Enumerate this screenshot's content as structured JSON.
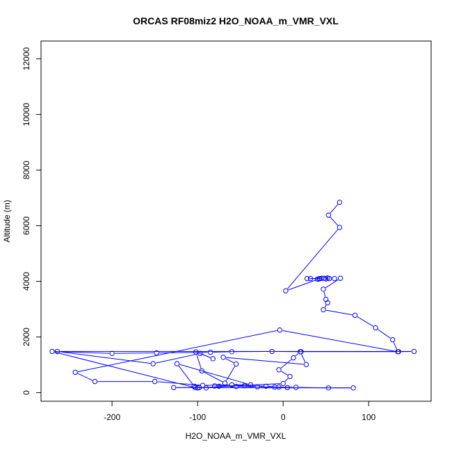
{
  "chart_data": {
    "type": "line",
    "title": "ORCAS RF08miz2 H2O_NOAA_m_VMR_VXL",
    "xlabel": "H2O_NOAA_m_VMR_VXL",
    "ylabel": "Altitude (m)",
    "xlim": [
      -283,
      173
    ],
    "ylim": [
      -310,
      12640
    ],
    "xticks": [
      -200,
      -100,
      0,
      100
    ],
    "yticks": [
      0,
      2000,
      4000,
      6000,
      8000,
      10000,
      12000
    ],
    "grid": false,
    "legend": "none",
    "series_color": "#0000ff",
    "series": [
      {
        "x": [
          66,
          53,
          66,
          3,
          42,
          40,
          45,
          43,
          28,
          32,
          48,
          50,
          52,
          54,
          60,
          67,
          47,
          50,
          52,
          47,
          84,
          108,
          128,
          134,
          -4,
          -243,
          -220,
          -150,
          -94,
          -60,
          -38,
          -124,
          -104,
          -100,
          0,
          8,
          -5,
          12,
          20,
          27,
          -70,
          -55,
          -68,
          -95,
          -102,
          -82,
          -97,
          -152,
          -264,
          153,
          135,
          21,
          -13,
          -60,
          -85,
          -148,
          -200,
          -270,
          -103,
          -90,
          -98,
          -128,
          82,
          53,
          15,
          -10,
          -30,
          -55,
          -75,
          -80,
          -45,
          -20,
          -5,
          5
        ],
        "y": [
          6840,
          6380,
          5940,
          3660,
          4090,
          4080,
          4110,
          4100,
          4100,
          4100,
          4110,
          4090,
          4120,
          4100,
          4100,
          4110,
          3720,
          3350,
          3230,
          2980,
          2780,
          2330,
          1900,
          1470,
          2250,
          730,
          400,
          400,
          260,
          280,
          280,
          1040,
          230,
          170,
          330,
          580,
          820,
          1250,
          1470,
          1010,
          1270,
          1030,
          340,
          780,
          1460,
          1220,
          1410,
          1040,
          1480,
          1480,
          1470,
          1470,
          1480,
          1470,
          1450,
          1430,
          1410,
          1480,
          180,
          170,
          180,
          180,
          170,
          170,
          190,
          200,
          210,
          220,
          230,
          240,
          250,
          230,
          200,
          180
        ]
      }
    ]
  }
}
